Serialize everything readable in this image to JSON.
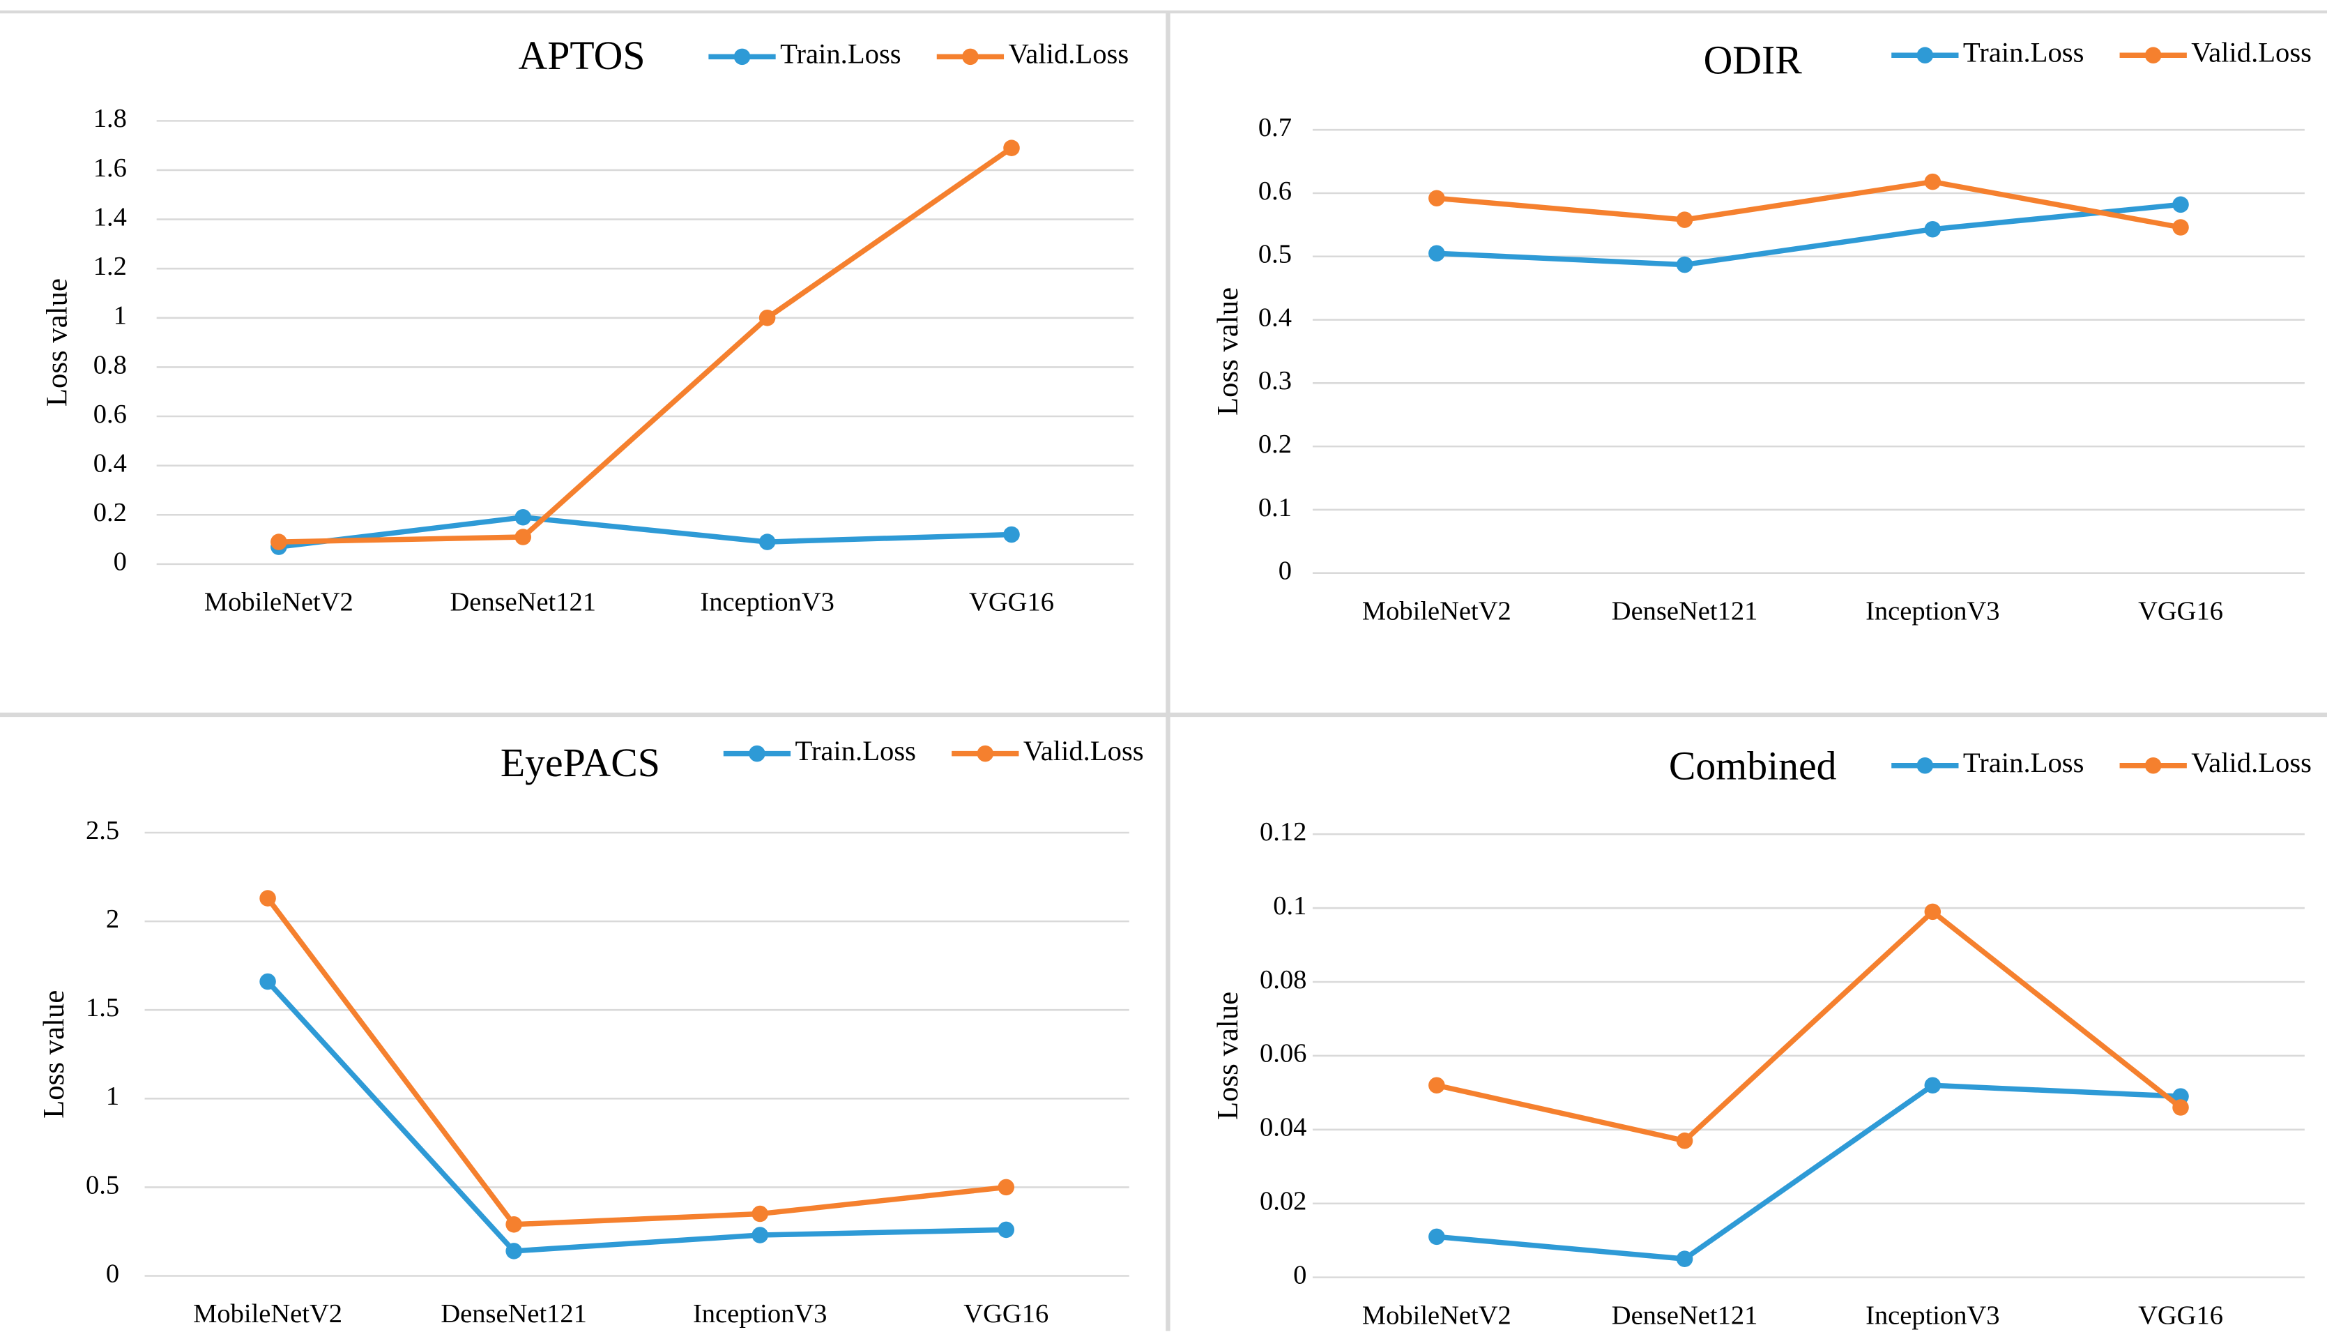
{
  "chart_data": [
    {
      "type": "line",
      "title": "APTOS",
      "y_label": "Loss value",
      "categories": [
        "MobileNetV2",
        "DenseNet121",
        "InceptionV3",
        "VGG16"
      ],
      "series": [
        {
          "name": "Train.Loss",
          "color": "#2e9ad6",
          "values": [
            0.07,
            0.19,
            0.09,
            0.12
          ]
        },
        {
          "name": "Valid.Loss",
          "color": "#f5802e",
          "values": [
            0.09,
            0.11,
            1.0,
            1.69
          ]
        }
      ],
      "ylim": [
        0,
        1.8
      ],
      "yticks": [
        0,
        0.2,
        0.4,
        0.6,
        0.8,
        1,
        1.2,
        1.4,
        1.6,
        1.8
      ],
      "grid": true
    },
    {
      "type": "line",
      "title": "ODIR",
      "y_label": "Loss value",
      "categories": [
        "MobileNetV2",
        "DenseNet121",
        "InceptionV3",
        "VGG16"
      ],
      "series": [
        {
          "name": "Train.Loss",
          "color": "#2e9ad6",
          "values": [
            0.505,
            0.487,
            0.543,
            0.582
          ]
        },
        {
          "name": "Valid.Loss",
          "color": "#f5802e",
          "values": [
            0.592,
            0.558,
            0.618,
            0.546
          ]
        }
      ],
      "ylim": [
        0,
        0.7
      ],
      "yticks": [
        0,
        0.1,
        0.2,
        0.3,
        0.4,
        0.5,
        0.6,
        0.7
      ],
      "grid": true
    },
    {
      "type": "line",
      "title": "EyePACS",
      "y_label": "Loss value",
      "categories": [
        "MobileNetV2",
        "DenseNet121",
        "InceptionV3",
        "VGG16"
      ],
      "series": [
        {
          "name": "Train.Loss",
          "color": "#2e9ad6",
          "values": [
            1.66,
            0.14,
            0.23,
            0.26
          ]
        },
        {
          "name": "Valid.Loss",
          "color": "#f5802e",
          "values": [
            2.13,
            0.29,
            0.35,
            0.5
          ]
        }
      ],
      "ylim": [
        0,
        2.5
      ],
      "yticks": [
        0,
        0.5,
        1,
        1.5,
        2,
        2.5
      ],
      "grid": true
    },
    {
      "type": "line",
      "title": "Combined",
      "y_label": "Loss value",
      "categories": [
        "MobileNetV2",
        "DenseNet121",
        "InceptionV3",
        "VGG16"
      ],
      "series": [
        {
          "name": "Train.Loss",
          "color": "#2e9ad6",
          "values": [
            0.011,
            0.005,
            0.052,
            0.049
          ]
        },
        {
          "name": "Valid.Loss",
          "color": "#f5802e",
          "values": [
            0.052,
            0.037,
            0.099,
            0.046
          ]
        }
      ],
      "ylim": [
        0,
        0.12
      ],
      "yticks": [
        0,
        0.02,
        0.04,
        0.06,
        0.08,
        0.1,
        0.12
      ],
      "grid": true
    }
  ]
}
